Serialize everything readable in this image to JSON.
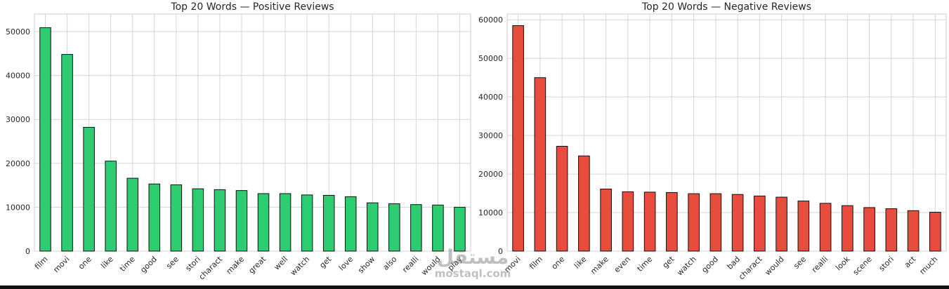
{
  "colors": {
    "positive_bar": "#2ecc71",
    "negative_bar": "#e74c3c",
    "bar_edge": "#111111",
    "grid": "#d5d5d5",
    "axes_edge": "#cccccc",
    "text": "#262626"
  },
  "watermark": {
    "arabic": "مستقل",
    "latin": "mostaql.com"
  },
  "chart_data": [
    {
      "type": "bar",
      "title": "Top 20 Words — Positive Reviews",
      "xlabel": "",
      "ylabel": "",
      "ylim": [
        0,
        54000
      ],
      "yticks": [
        0,
        10000,
        20000,
        30000,
        40000,
        50000
      ],
      "grid": true,
      "categories": [
        "film",
        "movi",
        "one",
        "like",
        "time",
        "good",
        "see",
        "stori",
        "charact",
        "make",
        "great",
        "well",
        "watch",
        "get",
        "love",
        "show",
        "also",
        "realli",
        "would",
        "play"
      ],
      "values": [
        50900,
        44800,
        28200,
        20500,
        16600,
        15300,
        15100,
        14200,
        14000,
        13800,
        13100,
        13100,
        12800,
        12700,
        12400,
        11000,
        10800,
        10600,
        10500,
        10000
      ]
    },
    {
      "type": "bar",
      "title": "Top 20 Words — Negative Reviews",
      "xlabel": "",
      "ylabel": "",
      "ylim": [
        0,
        61500
      ],
      "yticks": [
        0,
        10000,
        20000,
        30000,
        40000,
        50000,
        60000
      ],
      "grid": true,
      "categories": [
        "movi",
        "film",
        "one",
        "like",
        "make",
        "even",
        "time",
        "get",
        "watch",
        "good",
        "bad",
        "charact",
        "would",
        "see",
        "realli",
        "look",
        "scene",
        "stori",
        "act",
        "much"
      ],
      "values": [
        58500,
        45000,
        27200,
        24700,
        16100,
        15400,
        15300,
        15200,
        14900,
        14900,
        14700,
        14300,
        14000,
        13000,
        12400,
        11800,
        11300,
        11000,
        10500,
        10100
      ]
    }
  ]
}
